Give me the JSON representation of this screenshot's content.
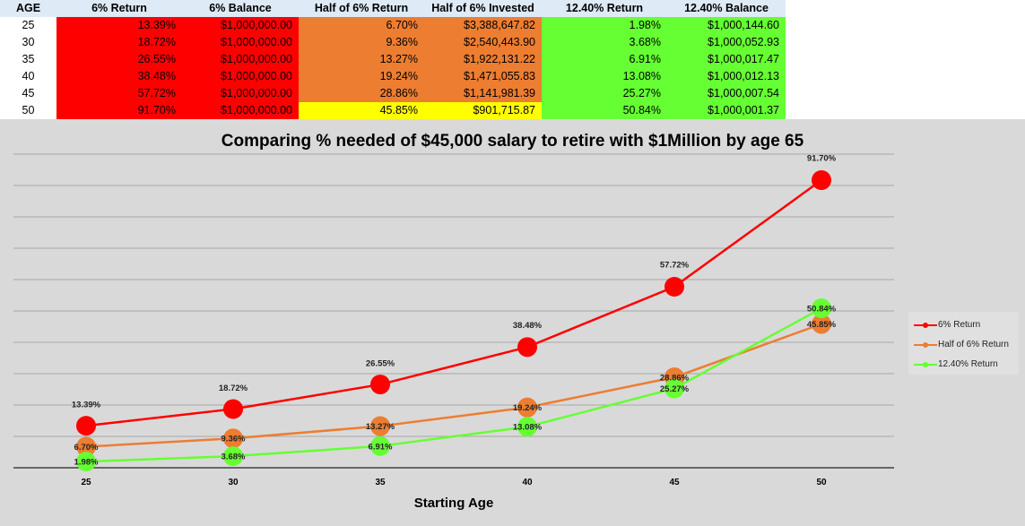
{
  "table": {
    "headers": [
      "AGE",
      "6% Return",
      "6% Balance",
      "Half of 6% Return",
      "Half of 6% Invested",
      "12.40% Return",
      "12.40% Balance"
    ],
    "rows": [
      [
        "25",
        "13.39%",
        "$1,000,000.00",
        "6.70%",
        "$3,388,647.82",
        "1.98%",
        "$1,000,144.60"
      ],
      [
        "30",
        "18.72%",
        "$1,000,000.00",
        "9.36%",
        "$2,540,443.90",
        "3.68%",
        "$1,000,052.93"
      ],
      [
        "35",
        "26.55%",
        "$1,000,000.00",
        "13.27%",
        "$1,922,131.22",
        "6.91%",
        "$1,000,017.47"
      ],
      [
        "40",
        "38.48%",
        "$1,000,000.00",
        "19.24%",
        "$1,471,055.83",
        "13.08%",
        "$1,000,012.13"
      ],
      [
        "45",
        "57.72%",
        "$1,000,000.00",
        "28.86%",
        "$1,141,981.39",
        "25.27%",
        "$1,000,007.54"
      ],
      [
        "50",
        "91.70%",
        "$1,000,000.00",
        "45.85%",
        "$901,715.87",
        "50.84%",
        "$1,000,001.37"
      ]
    ],
    "colors": {
      "header": "#deeaf6",
      "red": "#ff0000",
      "orange": "#ed7d31",
      "yellow": "#ffff00",
      "green": "#66ff33"
    },
    "highlighted_cell": {
      "row": 5,
      "columns": [
        3,
        4
      ],
      "color": "#ffff00"
    }
  },
  "chart_data": {
    "type": "line",
    "title": "Comparing % needed of $45,000 salary to retire with $1Million by age 65",
    "xlabel": "Starting Age",
    "ylabel": "",
    "categories": [
      "25",
      "30",
      "35",
      "40",
      "45",
      "50"
    ],
    "ylim": [
      0,
      100
    ],
    "grid": true,
    "legend_position": "right",
    "series": [
      {
        "name": "6% Return",
        "color": "#ff0000",
        "values": [
          13.39,
          18.72,
          26.55,
          38.48,
          57.72,
          91.7
        ],
        "labels": [
          "13.39%",
          "18.72%",
          "26.55%",
          "38.48%",
          "57.72%",
          "91.70%"
        ]
      },
      {
        "name": "Half of 6% Return",
        "color": "#ed7d31",
        "values": [
          6.7,
          9.36,
          13.27,
          19.24,
          28.86,
          45.85
        ],
        "labels": [
          "6.70%",
          "9.36%",
          "13.27%",
          "19.24%",
          "28.86%",
          "45.85%"
        ]
      },
      {
        "name": "12.40% Return",
        "color": "#66ff33",
        "values": [
          1.98,
          3.68,
          6.91,
          13.08,
          25.27,
          50.84
        ],
        "labels": [
          "1.98%",
          "3.68%",
          "6.91%",
          "13.08%",
          "25.27%",
          "50.84%"
        ]
      }
    ]
  }
}
